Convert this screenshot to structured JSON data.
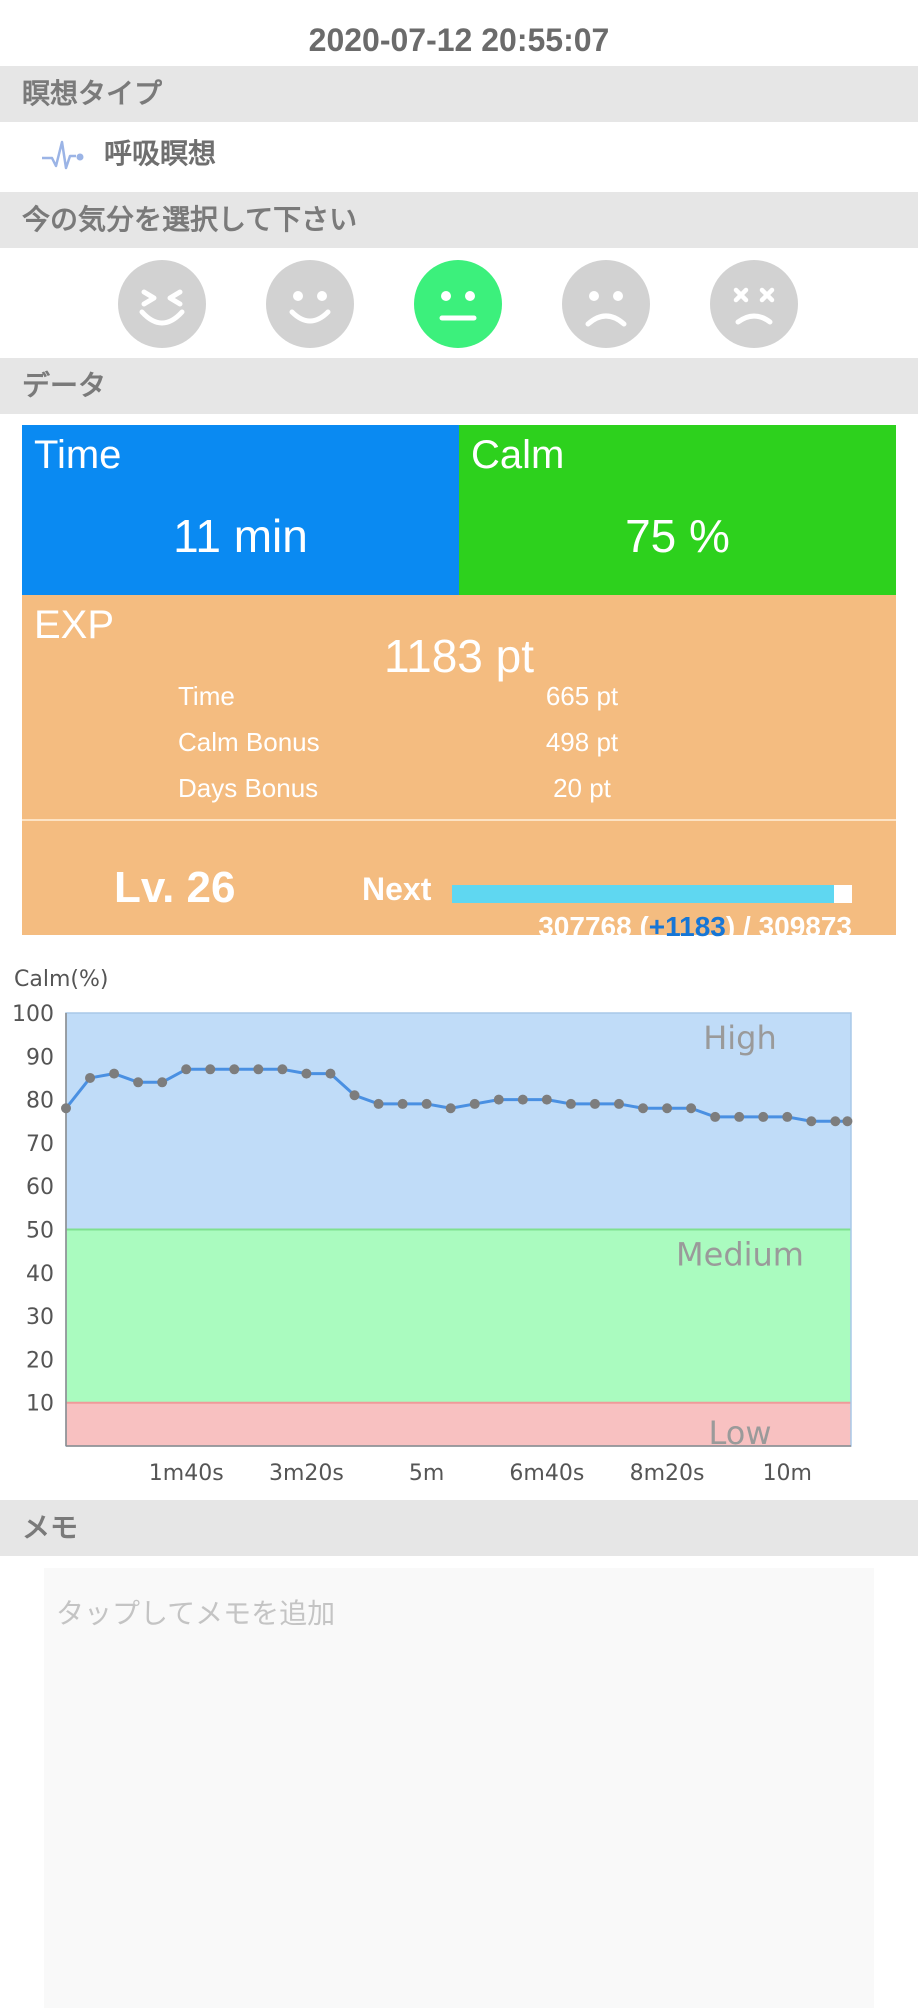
{
  "datetime": "2020-07-12 20:55:07",
  "sections": {
    "type": "瞑想タイプ",
    "mood": "今の気分を選択して下さい",
    "data": "データ",
    "memo": "メモ"
  },
  "meditation_type": {
    "label": "呼吸瞑想",
    "icon": "pulse-wave-icon"
  },
  "moods": [
    {
      "name": "laughing-face-icon",
      "selected": false
    },
    {
      "name": "smiling-face-icon",
      "selected": false
    },
    {
      "name": "neutral-face-icon",
      "selected": true
    },
    {
      "name": "sad-face-icon",
      "selected": false
    },
    {
      "name": "dizzy-face-icon",
      "selected": false
    }
  ],
  "stats": {
    "time": {
      "title": "Time",
      "value": "11 min"
    },
    "calm": {
      "title": "Calm",
      "value": "75 %"
    },
    "exp": {
      "title": "EXP",
      "total": "1183 pt",
      "rows": [
        {
          "label": "Time",
          "value": "665 pt"
        },
        {
          "label": "Calm Bonus",
          "value": "498 pt"
        },
        {
          "label": "Days Bonus",
          "value": "20 pt"
        }
      ]
    },
    "level": {
      "label": "Lv. 26",
      "next_label": "Next",
      "current": "307768",
      "gain": "+1183",
      "target": "309873",
      "progress_fraction": 0.955
    }
  },
  "colors": {
    "time_tile": "#0a8af2",
    "calm_tile": "#2dd11d",
    "exp_tile": "#f4bc80",
    "progress": "#5fd7f1",
    "mood_selected": "#3cf07c"
  },
  "chart_data": {
    "type": "line",
    "ylabel": "Calm(%)",
    "ylim": [
      0,
      100
    ],
    "yticks": [
      10,
      20,
      30,
      40,
      50,
      60,
      70,
      80,
      90,
      100
    ],
    "xlim": [
      0,
      653
    ],
    "xticks": [
      {
        "v": 100,
        "label": "1m40s"
      },
      {
        "v": 200,
        "label": "3m20s"
      },
      {
        "v": 300,
        "label": "5m"
      },
      {
        "v": 400,
        "label": "6m40s"
      },
      {
        "v": 500,
        "label": "8m20s"
      },
      {
        "v": 600,
        "label": "10m"
      }
    ],
    "bands": [
      {
        "name": "High",
        "from": 50,
        "to": 100,
        "color": "#c0dcf8"
      },
      {
        "name": "Medium",
        "from": 10,
        "to": 50,
        "color": "#aafbbf"
      },
      {
        "name": "Low",
        "from": 0,
        "to": 10,
        "color": "#f8c1c1"
      }
    ],
    "series": [
      {
        "color": "#4a90e2",
        "x": [
          0,
          20,
          40,
          60,
          80,
          100,
          120,
          140,
          160,
          180,
          200,
          220,
          240,
          260,
          280,
          300,
          320,
          340,
          360,
          380,
          400,
          420,
          440,
          460,
          480,
          500,
          520,
          540,
          560,
          580,
          600,
          620,
          640,
          650
        ],
        "y": [
          78,
          85,
          86,
          84,
          84,
          87,
          87,
          87,
          87,
          87,
          86,
          86,
          81,
          79,
          79,
          79,
          78,
          79,
          80,
          80,
          80,
          79,
          79,
          79,
          78,
          78,
          78,
          76,
          76,
          76,
          76,
          75,
          75,
          75
        ]
      }
    ]
  },
  "memo": {
    "placeholder": "タップしてメモを追加"
  }
}
